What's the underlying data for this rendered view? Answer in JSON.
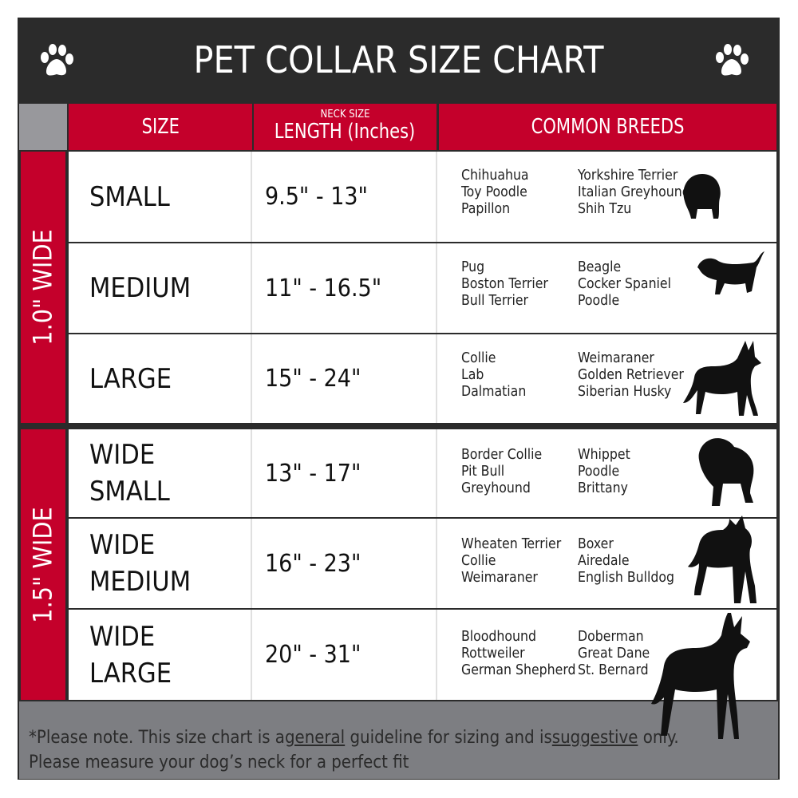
{
  "title": "PET COLLAR SIZE CHART",
  "headers": {
    "size": "SIZE",
    "length_small": "NECK SIZE",
    "length": "LENGTH (Inches)",
    "breeds": "COMMON BREEDS"
  },
  "bands": [
    "1.0\" WIDE",
    "1.5\" WIDE"
  ],
  "colors": {
    "red": "#c4002b",
    "dark": "#2b2b2b",
    "gray": "#7d7e82"
  },
  "rows": [
    {
      "size": [
        "SMALL"
      ],
      "length": "9.5\" - 13\"",
      "breeds1": [
        "Chihuahua",
        "Toy Poodle",
        "Papillon"
      ],
      "breeds2": [
        "Yorkshire Terrier",
        "Italian Greyhound",
        "Shih Tzu"
      ],
      "icon": "small-dog-icon"
    },
    {
      "size": [
        "MEDIUM"
      ],
      "length": "11\" - 16.5\"",
      "breeds1": [
        "Pug",
        "Boston Terrier",
        "Bull Terrier"
      ],
      "breeds2": [
        "Beagle",
        "Cocker Spaniel",
        "Poodle"
      ],
      "icon": "dachshund-icon"
    },
    {
      "size": [
        "LARGE"
      ],
      "length": "15\" - 24\"",
      "breeds1": [
        "Collie",
        "Lab",
        "Dalmatian"
      ],
      "breeds2": [
        "Weimaraner",
        "Golden Retriever",
        "Siberian Husky"
      ],
      "icon": "shepherd-dog-icon"
    },
    {
      "size": [
        "WIDE",
        "SMALL"
      ],
      "length": "13\" - 17\"",
      "breeds1": [
        "Border Collie",
        "Pit Bull",
        "Greyhound"
      ],
      "breeds2": [
        "Whippet",
        "Poodle",
        "Brittany"
      ],
      "icon": "bulldog-icon"
    },
    {
      "size": [
        "WIDE",
        "MEDIUM"
      ],
      "length": "16\" - 23\"",
      "breeds1": [
        "Wheaten Terrier",
        "Collie",
        "Weimaraner"
      ],
      "breeds2": [
        "Boxer",
        "Airedale",
        "English Bulldog"
      ],
      "icon": "pitbull-icon"
    },
    {
      "size": [
        "WIDE",
        "LARGE"
      ],
      "length": "20\" - 31\"",
      "breeds1": [
        "Bloodhound",
        "Rottweiler",
        "German Shepherd"
      ],
      "breeds2": [
        "Doberman",
        "Great Dane",
        "St. Bernard"
      ],
      "icon": "doberman-icon"
    }
  ],
  "note": {
    "prefix": "*Please note. This size chart is a",
    "u1": "general",
    "mid": " guideline for sizing and is",
    "u2": "suggestive",
    "end": " only.",
    "line2": "Please measure your dog’s neck for a perfect fit"
  }
}
